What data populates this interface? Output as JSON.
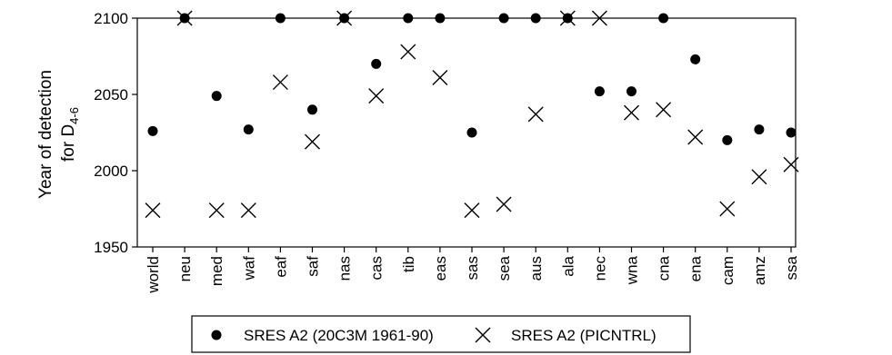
{
  "chart_data": {
    "type": "scatter",
    "ylabel_line1": "Year of detection",
    "ylabel_line2_prefix": "for D",
    "ylabel_line2_sub": "4-6",
    "ylim": [
      1950,
      2100
    ],
    "yticks": [
      "1950",
      "2000",
      "2050",
      "2100"
    ],
    "categories": [
      "world",
      "neu",
      "med",
      "waf",
      "eaf",
      "saf",
      "nas",
      "cas",
      "tib",
      "eas",
      "sas",
      "sea",
      "aus",
      "ala",
      "nec",
      "wna",
      "cna",
      "ena",
      "cam",
      "amz",
      "ssa"
    ],
    "series": [
      {
        "name": "SRES A2 (20C3M 1961-90)",
        "marker": "circle",
        "values": [
          2026,
          2100,
          2049,
          2027,
          2100,
          2040,
          2100,
          2070,
          2100,
          2100,
          2025,
          2100,
          2100,
          2100,
          2052,
          2052,
          2100,
          2073,
          2020,
          2027,
          2025
        ]
      },
      {
        "name": "SRES A2 (PICNTRL)",
        "marker": "cross",
        "values": [
          1974,
          2100,
          1974,
          1974,
          2058,
          2019,
          2100,
          2049,
          2078,
          2061,
          1974,
          1978,
          2037,
          2100,
          2100,
          2038,
          2040,
          2022,
          1975,
          1996,
          2004
        ]
      }
    ],
    "grid": false,
    "legend_position": "bottom"
  }
}
